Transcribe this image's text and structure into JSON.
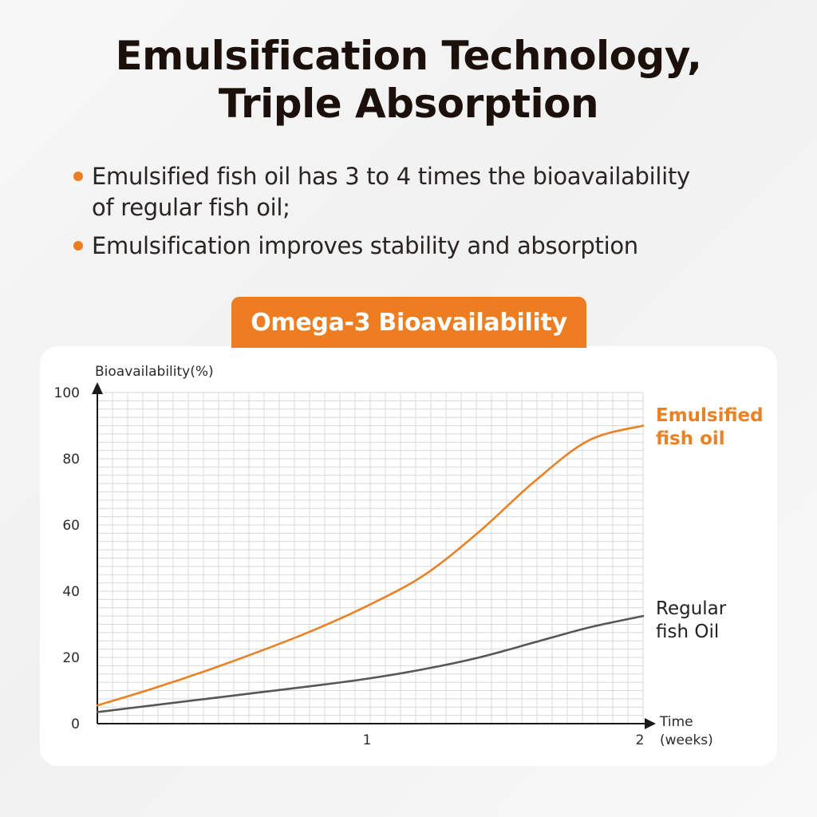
{
  "header": {
    "title_line1": "Emulsification Technology,",
    "title_line2": "Triple Absorption"
  },
  "bullets": [
    {
      "line1": "Emulsified fish oil has 3 to 4 times the bioavailability",
      "line2": "of regular fish oil;"
    },
    {
      "line1": "Emulsification improves stability and absorption"
    }
  ],
  "colors": {
    "accent": "#ee7d22",
    "emulsified": "#e98125",
    "regular": "#575757",
    "grid": "#d9d9d9",
    "axis": "#1a1a1a"
  },
  "chart_data": {
    "type": "line",
    "title": "Omega-3 Bioavailability",
    "ylabel": "Bioavailability(%)",
    "xlabel": "Time (weeks)",
    "xlabel_lines": [
      "Time",
      "(weeks)"
    ],
    "xlim": [
      0,
      2
    ],
    "ylim": [
      0,
      100
    ],
    "x_ticks": [
      1,
      2
    ],
    "y_ticks": [
      0,
      20,
      40,
      60,
      80,
      100
    ],
    "grid": true,
    "series": [
      {
        "name": "Emulsified fish oil",
        "label_lines": [
          "Emulsified",
          "fish oil"
        ],
        "color": "#e98125",
        "x": [
          0,
          0.2,
          0.4,
          0.6,
          0.8,
          1.0,
          1.2,
          1.4,
          1.6,
          1.8,
          2.0
        ],
        "y": [
          5.5,
          10.5,
          16,
          22,
          28.5,
          36,
          45,
          58,
          73,
          85.5,
          90
        ]
      },
      {
        "name": "Regular fish Oil",
        "label_lines": [
          "Regular",
          "fish Oil"
        ],
        "color": "#575757",
        "x": [
          0,
          0.2,
          0.4,
          0.6,
          0.8,
          1.0,
          1.2,
          1.4,
          1.6,
          1.8,
          2.0
        ],
        "y": [
          3.5,
          5.5,
          7.5,
          9.5,
          11.5,
          13.7,
          16.5,
          20,
          24.5,
          29,
          32.5
        ]
      }
    ]
  }
}
